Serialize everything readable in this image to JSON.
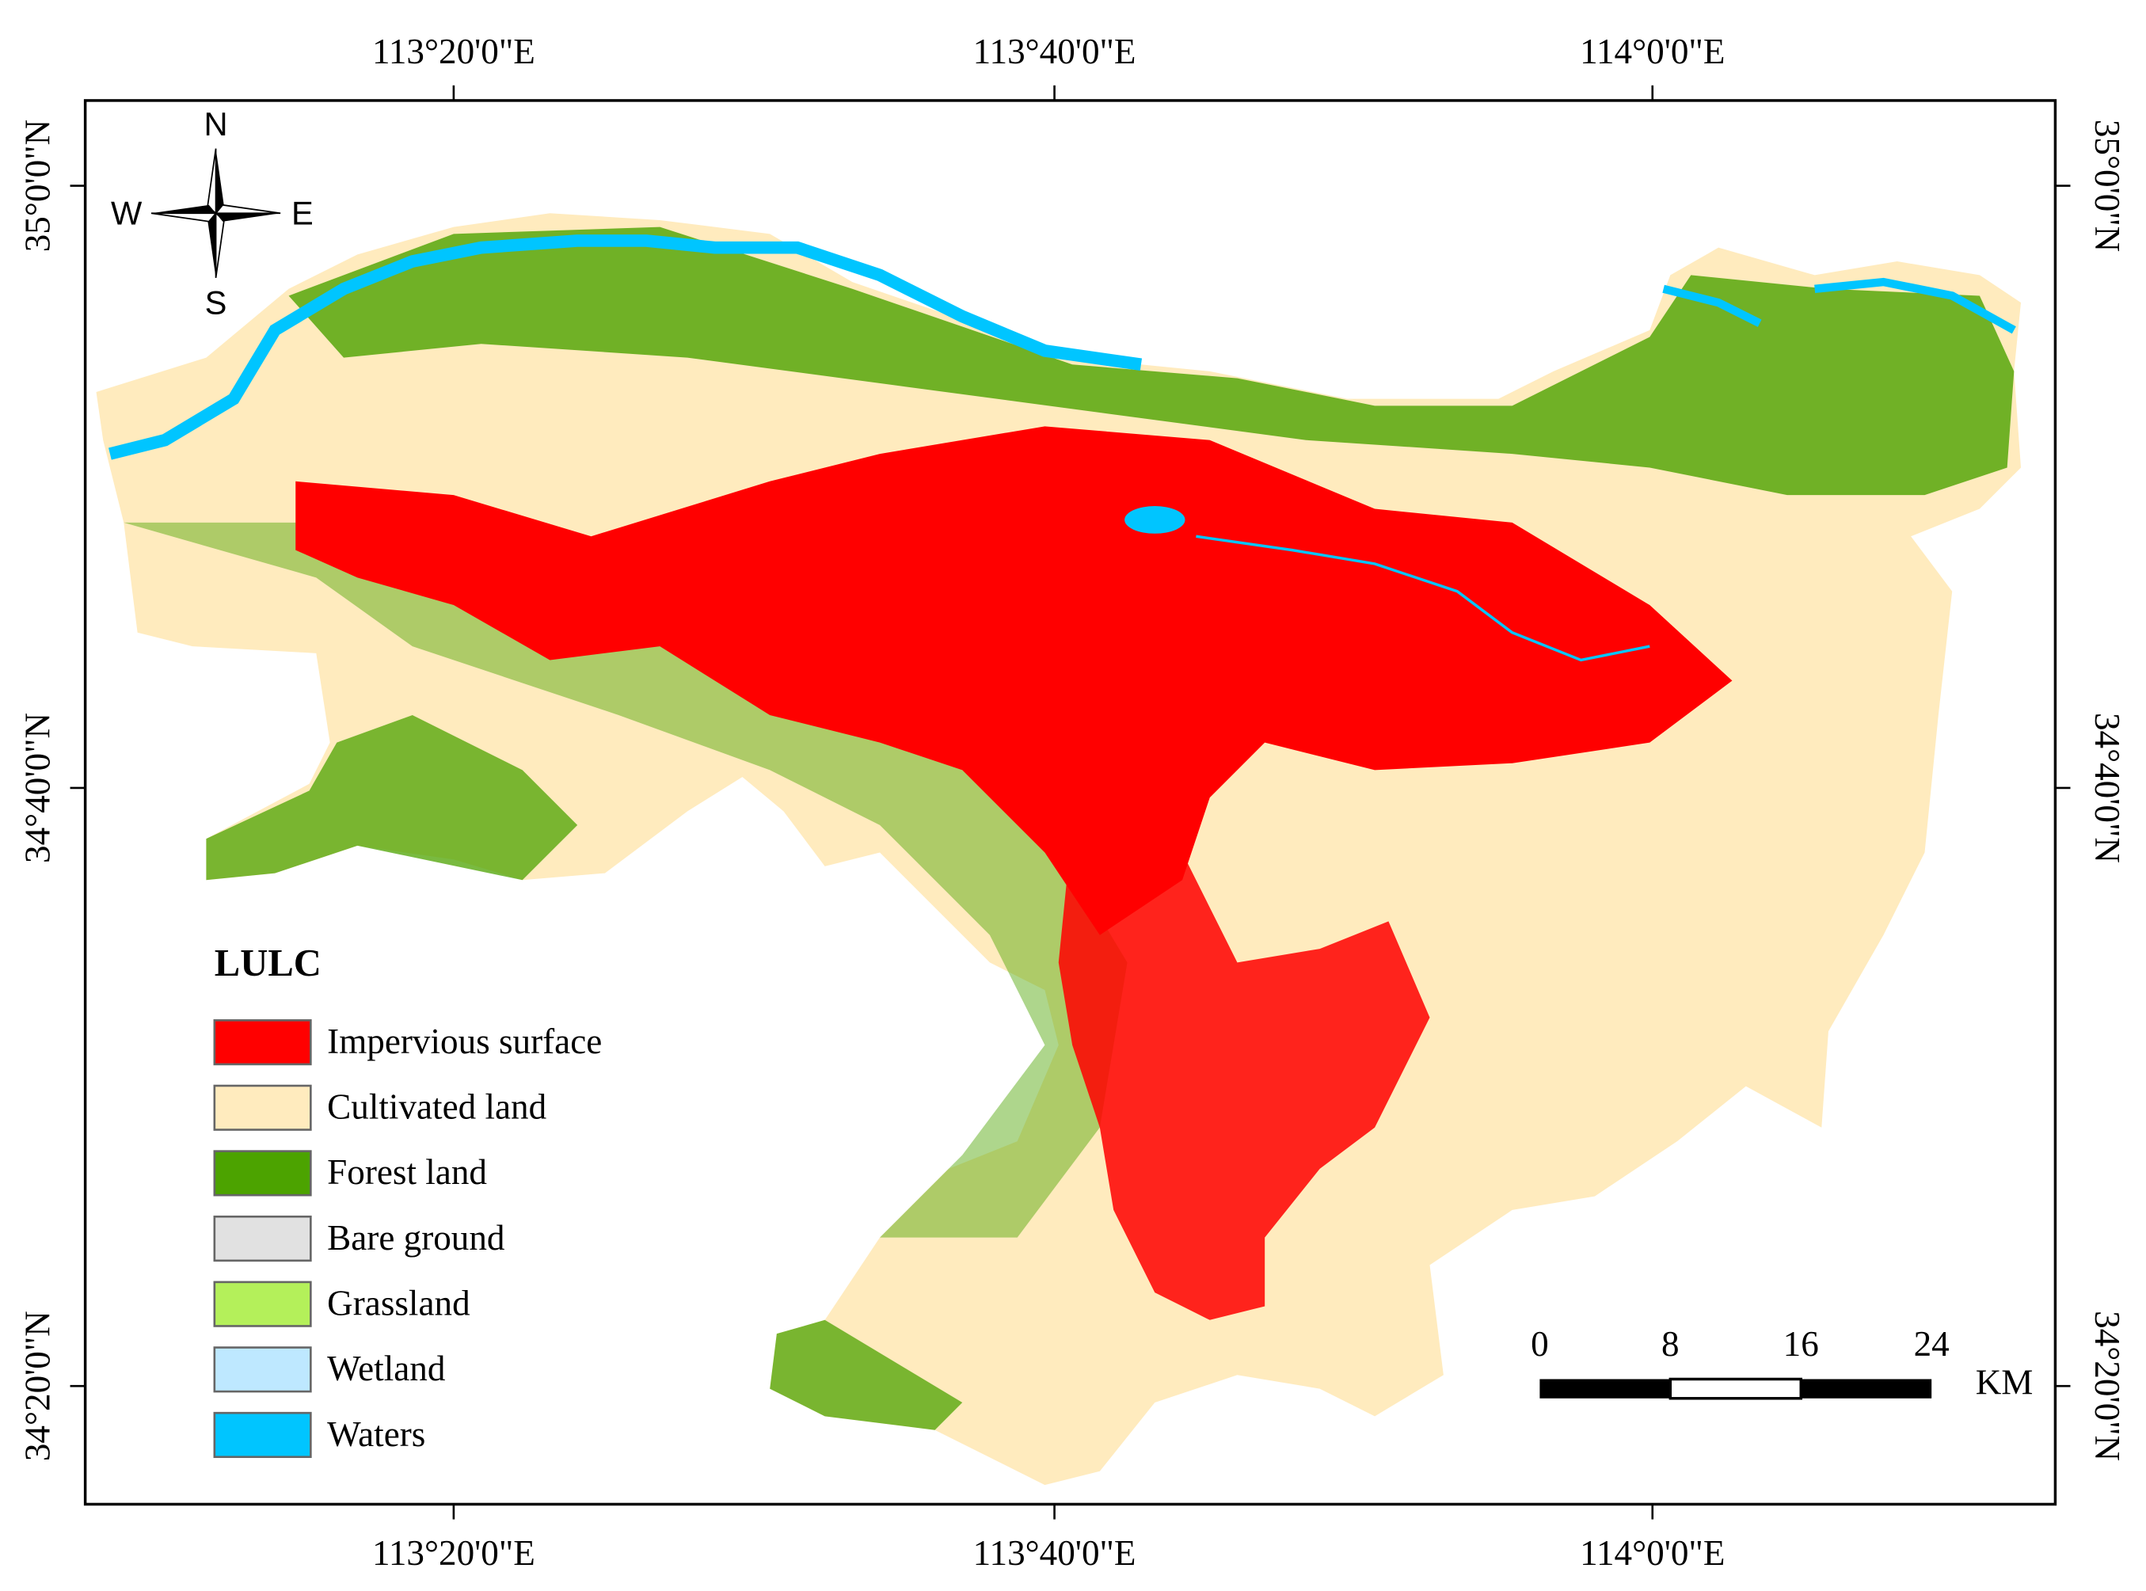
{
  "map": {
    "longitude_labels": [
      "113°20'0\"E",
      "113°40'0\"E",
      "114°0'0\"E"
    ],
    "latitude_labels": [
      "35°0'0\"N",
      "34°40'0\"N",
      "34°20'0\"N"
    ],
    "compass": {
      "north": "N",
      "south": "S",
      "west": "W",
      "east": "E"
    },
    "legend": {
      "title": "LULC",
      "items": [
        {
          "label": "Impervious surface",
          "color": "#ff0000"
        },
        {
          "label": "Cultivated land",
          "color": "#ffebbe"
        },
        {
          "label": "Forest land",
          "color": "#4ca300"
        },
        {
          "label": "Bare ground",
          "color": "#e1e1e1"
        },
        {
          "label": "Grassland",
          "color": "#b4f05a"
        },
        {
          "label": "Wetland",
          "color": "#bee8ff"
        },
        {
          "label": "Waters",
          "color": "#00c5ff"
        }
      ]
    },
    "scale_bar": {
      "ticks": [
        "0",
        "8",
        "16",
        "24"
      ],
      "unit": "KM"
    }
  }
}
